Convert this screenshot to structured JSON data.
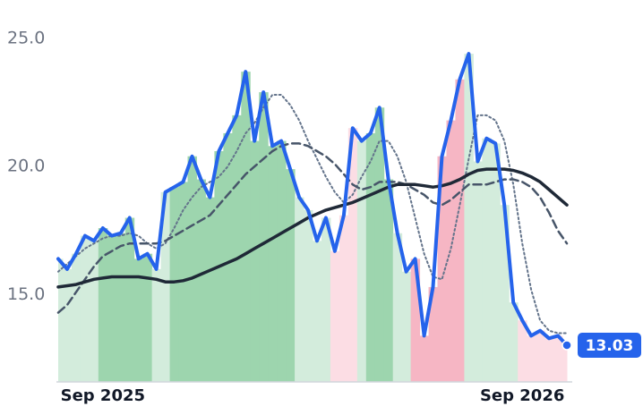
{
  "chart_data": {
    "type": "line",
    "categories": [
      null,
      null,
      null,
      null,
      null,
      "Sep 2025",
      null,
      null,
      null,
      null,
      null,
      null,
      null,
      null,
      null,
      null,
      null,
      null,
      null,
      null,
      null,
      null,
      null,
      null,
      null,
      null,
      null,
      null,
      null,
      null,
      null,
      null,
      null,
      null,
      null,
      null,
      null,
      null,
      null,
      null,
      null,
      null,
      null,
      null,
      null,
      null,
      null,
      null,
      null,
      null,
      null,
      null,
      "Sep 2026",
      null,
      null,
      null,
      null,
      null
    ],
    "series": [
      {
        "color": "#2563eb",
        "style": "solid",
        "width": 4,
        "values": [
          16.4,
          16.0,
          16.6,
          17.3,
          17.1,
          17.6,
          17.3,
          17.4,
          18.0,
          16.4,
          16.6,
          16.0,
          19.0,
          19.2,
          19.4,
          20.4,
          19.5,
          18.8,
          20.6,
          21.3,
          22.0,
          23.7,
          21.0,
          22.9,
          20.8,
          21.0,
          19.9,
          18.8,
          18.3,
          17.1,
          18.0,
          16.7,
          18.1,
          21.5,
          21.0,
          21.3,
          22.3,
          19.5,
          17.4,
          15.9,
          16.4,
          13.4,
          15.3,
          20.4,
          21.8,
          23.4,
          24.4,
          20.2,
          21.1,
          20.9,
          18.5,
          14.7,
          14.0,
          13.4,
          13.6,
          13.3,
          13.4,
          13.03
        ]
      },
      {
        "color": "#1f2937",
        "style": "solid",
        "width": 3.5,
        "values": [
          15.3,
          15.35,
          15.4,
          15.5,
          15.6,
          15.65,
          15.7,
          15.7,
          15.7,
          15.7,
          15.65,
          15.6,
          15.5,
          15.5,
          15.55,
          15.65,
          15.8,
          15.95,
          16.1,
          16.25,
          16.4,
          16.6,
          16.8,
          17.0,
          17.2,
          17.4,
          17.6,
          17.8,
          18.0,
          18.15,
          18.3,
          18.4,
          18.5,
          18.6,
          18.75,
          18.9,
          19.05,
          19.2,
          19.3,
          19.3,
          19.3,
          19.25,
          19.2,
          19.25,
          19.35,
          19.5,
          19.7,
          19.85,
          19.9,
          19.9,
          19.9,
          19.85,
          19.75,
          19.6,
          19.4,
          19.1,
          18.8,
          18.5
        ]
      },
      {
        "color": "#475569",
        "style": "dashed",
        "width": 2.5,
        "values": [
          14.3,
          14.6,
          15.1,
          15.6,
          16.1,
          16.5,
          16.7,
          16.9,
          17.0,
          17.0,
          17.0,
          17.0,
          17.1,
          17.3,
          17.5,
          17.7,
          17.9,
          18.1,
          18.5,
          18.9,
          19.3,
          19.7,
          20.0,
          20.3,
          20.6,
          20.8,
          20.9,
          20.9,
          20.8,
          20.6,
          20.4,
          20.1,
          19.7,
          19.3,
          19.1,
          19.2,
          19.4,
          19.4,
          19.4,
          19.3,
          19.1,
          18.9,
          18.6,
          18.5,
          18.7,
          19.0,
          19.3,
          19.3,
          19.3,
          19.4,
          19.5,
          19.5,
          19.4,
          19.2,
          18.8,
          18.2,
          17.5,
          17.0
        ]
      },
      {
        "color": "#64748b",
        "style": "dotted",
        "width": 2,
        "values": [
          15.9,
          16.2,
          16.5,
          16.8,
          17.0,
          17.2,
          17.3,
          17.3,
          17.4,
          17.3,
          17.0,
          16.8,
          17.0,
          17.6,
          18.3,
          18.8,
          19.2,
          19.4,
          19.6,
          20.0,
          20.6,
          21.3,
          21.7,
          22.3,
          22.8,
          22.8,
          22.4,
          21.8,
          21.0,
          20.3,
          19.6,
          19.0,
          18.6,
          18.9,
          19.6,
          20.2,
          21.0,
          21.0,
          20.4,
          19.4,
          18.0,
          16.6,
          15.7,
          15.6,
          16.8,
          18.5,
          20.3,
          22.0,
          22.0,
          21.8,
          21.0,
          19.3,
          17.0,
          15.2,
          14.0,
          13.6,
          13.5,
          13.5
        ]
      }
    ],
    "regimes": [
      "lg",
      "lg",
      "lg",
      "lg",
      "lg",
      "g",
      "g",
      "g",
      "g",
      "g",
      "g",
      "lg",
      "lg",
      "g",
      "g",
      "g",
      "g",
      "g",
      "g",
      "g",
      "g",
      "g",
      "g",
      "g",
      "g",
      "g",
      "g",
      "lg",
      "lg",
      "lg",
      "lg",
      "lr",
      "lr",
      "lr",
      "lg",
      "g",
      "g",
      "g",
      "lg",
      "lg",
      "r",
      "r",
      "r",
      "r",
      "r",
      "r",
      "lg",
      "lg",
      "lg",
      "lg",
      "lg",
      "lg",
      "lr",
      "lr",
      "lr",
      "lr",
      "lr",
      "lr"
    ],
    "regime_colors": {
      "g": "#9dd5ae",
      "lg": "#d3ecdc",
      "r": "#f6b6c4",
      "lr": "#fcdde4"
    },
    "ylim": [
      11.6,
      25.45
    ],
    "yticks": [
      {
        "value": 15,
        "label": "15.0"
      },
      {
        "value": 20,
        "label": "20.0"
      },
      {
        "value": 25,
        "label": "25.0"
      }
    ],
    "grid": false
  }
}
